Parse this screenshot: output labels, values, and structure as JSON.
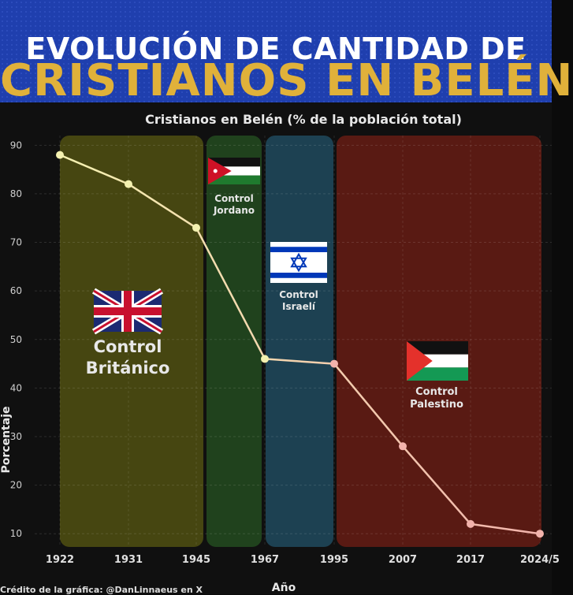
{
  "banner": {
    "line1": "EVOLUCIÓN DE CANTIDAD DE",
    "line2": "CRISTIANOS EN BELÉN"
  },
  "chart_data": {
    "type": "line",
    "title": "Cristianos en Belén (% de la población total)",
    "xlabel": "Año",
    "ylabel": "Porcentaje",
    "ylim": [
      5,
      92
    ],
    "yticks": [
      10,
      20,
      30,
      40,
      50,
      60,
      70,
      80,
      90
    ],
    "categories": [
      "1922",
      "1931",
      "1945",
      "1967",
      "1995",
      "2007",
      "2017",
      "2024/5"
    ],
    "values": [
      88,
      82,
      73,
      46,
      45,
      28,
      12,
      10
    ],
    "grid": true,
    "regions": [
      {
        "label_line1": "Control",
        "label_line2": "Británico",
        "color": "#4a4a12",
        "flag": "uk"
      },
      {
        "label_line1": "Control",
        "label_line2": "Jordano",
        "color": "#22461f",
        "flag": "jordan"
      },
      {
        "label_line1": "Control",
        "label_line2": "Israelí",
        "color": "#1f4556",
        "flag": "israel"
      },
      {
        "label_line1": "Control",
        "label_line2": "Palestino",
        "color": "#5e1b14",
        "flag": "palestine"
      }
    ],
    "line_color_start": "#f4f1b0",
    "line_color_end": "#f2b3ac"
  },
  "credit": "Crédito de la gráfica: @DanLinnaeus en X"
}
